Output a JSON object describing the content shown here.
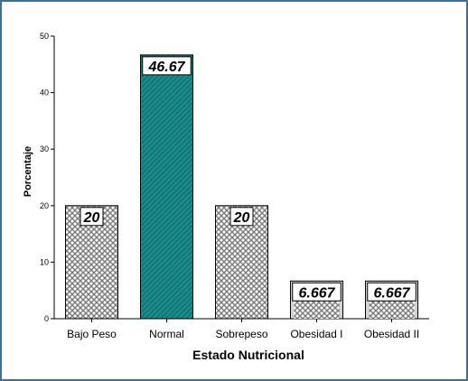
{
  "chart_data": {
    "type": "bar",
    "title": "",
    "xlabel": "Estado Nutricional",
    "ylabel": "Porcentaje",
    "ylim": [
      0,
      50
    ],
    "yticks": [
      0,
      10,
      20,
      30,
      40,
      50
    ],
    "grid": false,
    "categories": [
      "Bajo Peso",
      "Normal",
      "Sobrepeso",
      "Obesidad I",
      "Obesidad II"
    ],
    "values": [
      20,
      46.67,
      20,
      6.667,
      6.667
    ],
    "data_labels": [
      "20",
      "46.67",
      "20",
      "6.667",
      "6.667"
    ],
    "bar_styles": [
      "crosshatch-gray",
      "diagonal-teal",
      "crosshatch-gray",
      "light-gray",
      "light-gray"
    ],
    "colors": {
      "frame": "#3f6f91",
      "teal": "#1a8a8a",
      "gray_hatch": "#8c8c8c",
      "light_gray": "#d4d4d4"
    }
  }
}
